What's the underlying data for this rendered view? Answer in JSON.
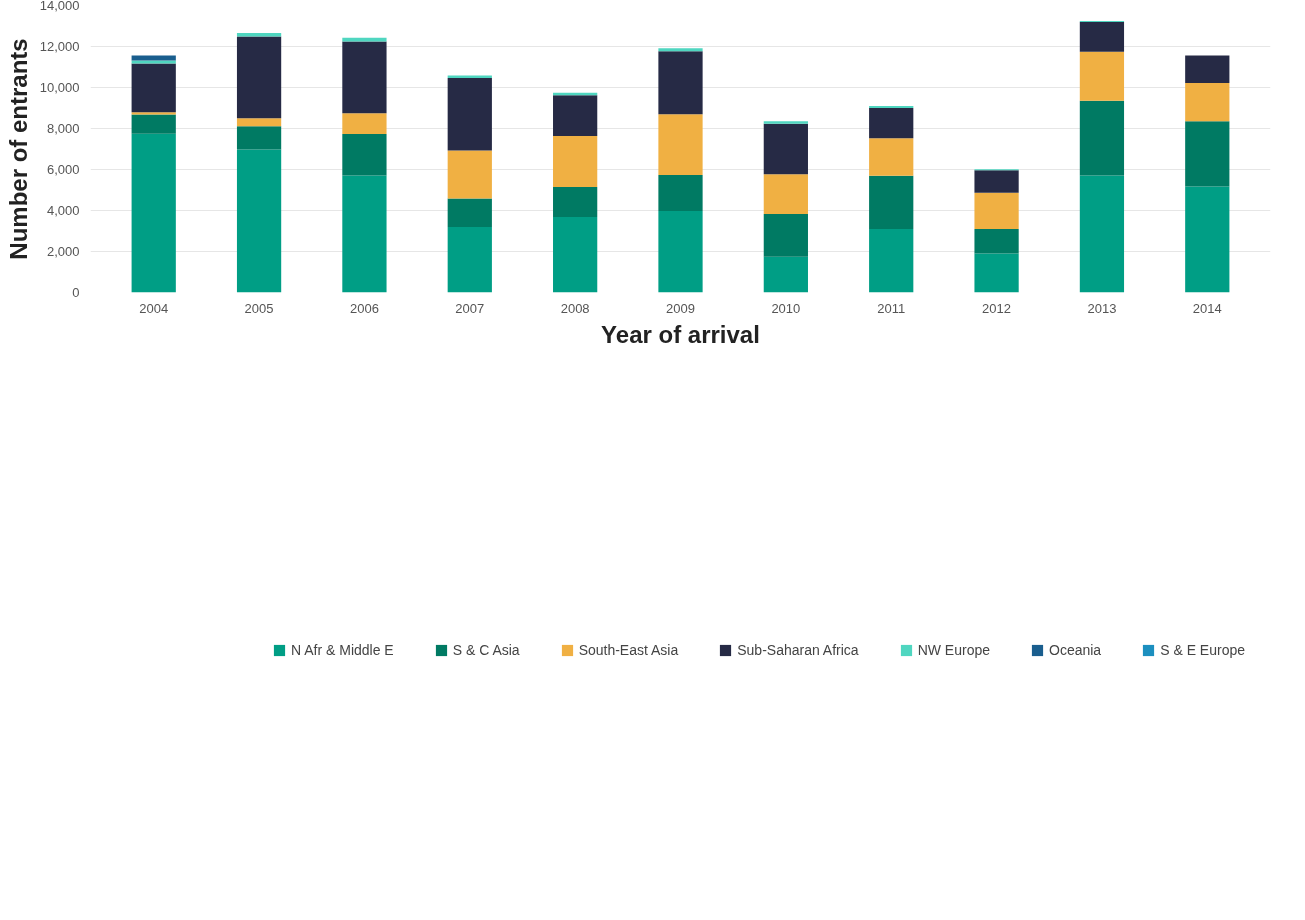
{
  "chart_data": {
    "type": "bar",
    "stacked": true,
    "xlabel": "Year of arrival",
    "ylabel": "Number of entrants",
    "categories": [
      "2004",
      "2005",
      "2006",
      "2007",
      "2008",
      "2009",
      "2010",
      "2011",
      "2012",
      "2013",
      "2014"
    ],
    "series": [
      {
        "name": "N Afr & Middle E",
        "color": "#009e85",
        "values": [
          7750,
          6970,
          5710,
          3200,
          3680,
          3970,
          1740,
          3100,
          1900,
          5710,
          5170
        ]
      },
      {
        "name": "S & C Asia",
        "color": "#007a63",
        "values": [
          930,
          1140,
          2020,
          1390,
          1470,
          1760,
          2090,
          2590,
          1200,
          3640,
          3180
        ]
      },
      {
        "name": "South-East Asia",
        "color": "#f0b043",
        "values": [
          110,
          390,
          1020,
          2340,
          2480,
          2960,
          1940,
          1840,
          1760,
          2400,
          1870
        ]
      },
      {
        "name": "Sub-Saharan Africa",
        "color": "#262a45",
        "values": [
          2380,
          3990,
          3490,
          3530,
          1990,
          3080,
          2460,
          1470,
          1100,
          1440,
          1340
        ]
      },
      {
        "name": "NW Europe",
        "color": "#4fd6c0",
        "values": [
          150,
          170,
          190,
          130,
          120,
          140,
          120,
          100,
          50,
          60,
          0
        ]
      },
      {
        "name": "Oceania",
        "color": "#1a5e8e",
        "values": [
          240,
          0,
          0,
          0,
          0,
          0,
          0,
          0,
          0,
          0,
          0
        ]
      },
      {
        "name": "S & E Europe",
        "color": "#1c8fbf",
        "values": [
          0,
          0,
          0,
          0,
          0,
          0,
          0,
          0,
          0,
          0,
          0
        ]
      }
    ],
    "ylim": [
      0,
      14000
    ],
    "yticks": [
      0,
      {
        "value": 2000,
        "label": "2,000"
      },
      {
        "value": 4000,
        "label": "4,000"
      },
      {
        "value": 6000,
        "label": "6,000"
      },
      {
        "value": 8000,
        "label": "8,000"
      },
      {
        "value": 10000,
        "label": "10,000"
      },
      {
        "value": 12000,
        "label": "12,000"
      },
      {
        "value": 14000,
        "label": "14,000"
      }
    ],
    "grid": "y",
    "legend": "bottom"
  }
}
